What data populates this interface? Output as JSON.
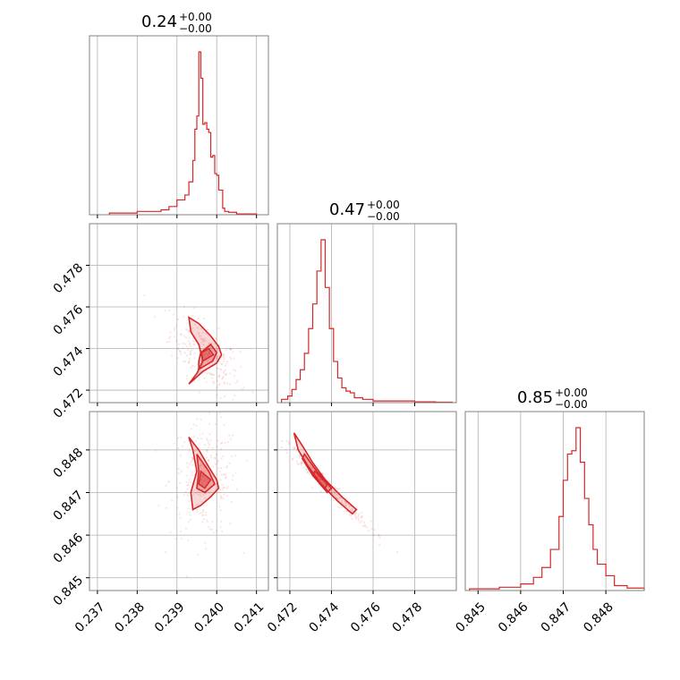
{
  "chart_data": {
    "type": "corner",
    "colors": {
      "main": "#d62728",
      "grid": "#b0b0b0",
      "frame": "#808080"
    },
    "grid": true,
    "parameters": [
      {
        "title_value": "0.24",
        "title_plus": "+0.00",
        "title_minus": "−0.00",
        "range": [
          0.2368,
          0.2413
        ],
        "ticks": [
          0.237,
          0.238,
          0.239,
          0.24,
          0.241
        ],
        "tick_labels": [
          "0.237",
          "0.238",
          "0.239",
          "0.240",
          "0.241"
        ]
      },
      {
        "title_value": "0.47",
        "title_plus": "+0.00",
        "title_minus": "−0.00",
        "range": [
          0.4714,
          0.48
        ],
        "ticks": [
          0.472,
          0.474,
          0.476,
          0.478
        ],
        "tick_labels": [
          "0.472",
          "0.474",
          "0.476",
          "0.478"
        ]
      },
      {
        "title_value": "0.85",
        "title_plus": "+0.00",
        "title_minus": "−0.00",
        "range": [
          0.8447,
          0.8489
        ],
        "ticks": [
          0.845,
          0.846,
          0.847,
          0.848
        ],
        "tick_labels": [
          "0.845",
          "0.846",
          "0.847",
          "0.848"
        ]
      }
    ],
    "histograms": [
      {
        "param": 0,
        "edges": [
          0.2373,
          0.238,
          0.2386,
          0.2388,
          0.239,
          0.2392,
          0.2393,
          0.2394,
          0.23945,
          0.2395,
          0.23955,
          0.2396,
          0.23965,
          0.2397,
          0.23975,
          0.2398,
          0.23985,
          0.2399,
          0.23995,
          0.24,
          0.24005,
          0.2401,
          0.24015,
          0.2402,
          0.2403,
          0.2405,
          0.241
        ],
        "counts": [
          0.01,
          0.02,
          0.03,
          0.05,
          0.09,
          0.12,
          0.2,
          0.33,
          0.52,
          0.6,
          0.99,
          0.83,
          0.55,
          0.56,
          0.52,
          0.5,
          0.35,
          0.36,
          0.25,
          0.24,
          0.15,
          0.15,
          0.04,
          0.02,
          0.015,
          0.005
        ]
      },
      {
        "param": 1,
        "edges": [
          0.4716,
          0.4719,
          0.4721,
          0.4723,
          0.4725,
          0.4727,
          0.4729,
          0.4731,
          0.4733,
          0.4735,
          0.4737,
          0.4739,
          0.4741,
          0.4743,
          0.4745,
          0.4747,
          0.4749,
          0.4751,
          0.4753,
          0.4755,
          0.476,
          0.477,
          0.478,
          0.479,
          0.4798
        ],
        "counts": [
          0.02,
          0.04,
          0.08,
          0.14,
          0.2,
          0.3,
          0.45,
          0.6,
          0.8,
          0.99,
          0.7,
          0.45,
          0.25,
          0.15,
          0.09,
          0.07,
          0.06,
          0.03,
          0.03,
          0.02,
          0.01,
          0.01,
          0.005,
          0.003
        ]
      },
      {
        "param": 2,
        "edges": [
          0.8448,
          0.8455,
          0.846,
          0.8463,
          0.8465,
          0.8467,
          0.8469,
          0.847,
          0.8471,
          0.8472,
          0.8473,
          0.8474,
          0.8475,
          0.8476,
          0.8477,
          0.8478,
          0.848,
          0.8482,
          0.8485,
          0.8489
        ],
        "counts": [
          0.01,
          0.02,
          0.04,
          0.08,
          0.14,
          0.25,
          0.45,
          0.67,
          0.83,
          0.85,
          0.99,
          0.78,
          0.56,
          0.4,
          0.25,
          0.16,
          0.09,
          0.03,
          0.015
        ]
      }
    ],
    "pairs": [
      {
        "x_param": 0,
        "y_param": 1,
        "level_outer": [
          [
            0.2393,
            0.4723
          ],
          [
            0.23965,
            0.4729
          ],
          [
            0.24,
            0.4733
          ],
          [
            0.24012,
            0.4737
          ],
          [
            0.24005,
            0.4741
          ],
          [
            0.23985,
            0.4746
          ],
          [
            0.23955,
            0.4752
          ],
          [
            0.2393,
            0.4755
          ],
          [
            0.23935,
            0.4748
          ],
          [
            0.23955,
            0.4742
          ],
          [
            0.23965,
            0.4734
          ],
          [
            0.2395,
            0.4728
          ]
        ],
        "level_inner": [
          [
            0.23955,
            0.473
          ],
          [
            0.2399,
            0.4734
          ],
          [
            0.24,
            0.4738
          ],
          [
            0.23985,
            0.4742
          ],
          [
            0.2396,
            0.4738
          ],
          [
            0.23955,
            0.4734
          ]
        ],
        "level_core": [
          [
            0.23965,
            0.4734
          ],
          [
            0.23992,
            0.4737
          ],
          [
            0.2398,
            0.474
          ],
          [
            0.23962,
            0.4738
          ]
        ],
        "center": [
          0.2397,
          0.4737
        ],
        "cov": [
          [
            1.9e-07,
            -2.5e-07
          ],
          [
            -2.5e-07,
            9e-07
          ]
        ]
      },
      {
        "x_param": 0,
        "y_param": 2,
        "level_outer": [
          [
            0.2393,
            0.8483
          ],
          [
            0.23955,
            0.848
          ],
          [
            0.2398,
            0.8476
          ],
          [
            0.24,
            0.8473
          ],
          [
            0.24005,
            0.8471
          ],
          [
            0.23985,
            0.8469
          ],
          [
            0.2396,
            0.8467
          ],
          [
            0.2394,
            0.8466
          ],
          [
            0.23935,
            0.847
          ],
          [
            0.2395,
            0.8475
          ],
          [
            0.2394,
            0.848
          ]
        ],
        "level_inner": [
          [
            0.2395,
            0.8479
          ],
          [
            0.2398,
            0.8475
          ],
          [
            0.23995,
            0.8472
          ],
          [
            0.2397,
            0.847
          ],
          [
            0.2395,
            0.8471
          ],
          [
            0.23955,
            0.8475
          ]
        ],
        "level_core": [
          [
            0.2396,
            0.8475
          ],
          [
            0.23985,
            0.8473
          ],
          [
            0.2397,
            0.8471
          ],
          [
            0.23955,
            0.8472
          ]
        ],
        "center": [
          0.2397,
          0.8473
        ],
        "cov": [
          [
            1.9e-07,
            0.0
          ],
          [
            0.0,
            4.5e-07
          ]
        ]
      },
      {
        "x_param": 1,
        "y_param": 2,
        "level_outer": [
          [
            0.4722,
            0.8484
          ],
          [
            0.4726,
            0.8481
          ],
          [
            0.4731,
            0.8477
          ],
          [
            0.4737,
            0.8473
          ],
          [
            0.4745,
            0.8469
          ],
          [
            0.4752,
            0.8466
          ],
          [
            0.475,
            0.8465
          ],
          [
            0.4743,
            0.8468
          ],
          [
            0.4735,
            0.8472
          ],
          [
            0.4729,
            0.8476
          ],
          [
            0.4724,
            0.848
          ]
        ],
        "level_inner": [
          [
            0.4727,
            0.8479
          ],
          [
            0.4733,
            0.8475
          ],
          [
            0.474,
            0.8471
          ],
          [
            0.4738,
            0.847
          ],
          [
            0.4731,
            0.8474
          ],
          [
            0.4726,
            0.8478
          ]
        ],
        "level_core": [
          [
            0.4732,
            0.8475
          ],
          [
            0.4738,
            0.8472
          ],
          [
            0.4737,
            0.8471
          ],
          [
            0.4731,
            0.8474
          ]
        ],
        "center": [
          0.4737,
          0.8472
        ],
        "cov": [
          [
            1.2e-06,
            -5.8e-07
          ],
          [
            -5.8e-07,
            2.9e-07
          ]
        ]
      }
    ]
  }
}
